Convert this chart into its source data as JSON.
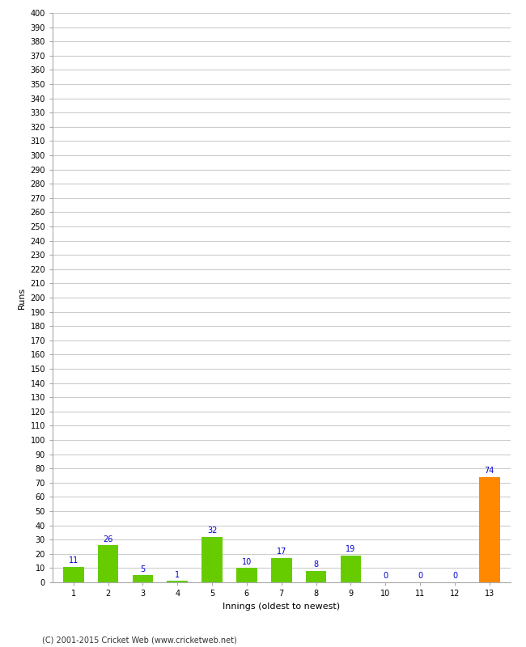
{
  "categories": [
    1,
    2,
    3,
    4,
    5,
    6,
    7,
    8,
    9,
    10,
    11,
    12,
    13
  ],
  "values": [
    11,
    26,
    5,
    1,
    32,
    10,
    17,
    8,
    19,
    0,
    0,
    0,
    74
  ],
  "bar_colors": [
    "#66cc00",
    "#66cc00",
    "#66cc00",
    "#66cc00",
    "#66cc00",
    "#66cc00",
    "#66cc00",
    "#66cc00",
    "#66cc00",
    "#66cc00",
    "#66cc00",
    "#66cc00",
    "#ff8800"
  ],
  "xlabel": "Innings (oldest to newest)",
  "ylabel": "Runs",
  "ylim": [
    0,
    400
  ],
  "ytick_step": 10,
  "label_color": "#0000cc",
  "label_fontsize": 7,
  "axis_fontsize": 8,
  "tick_fontsize": 7,
  "background_color": "#ffffff",
  "grid_color": "#cccccc",
  "footer": "(C) 2001-2015 Cricket Web (www.cricketweb.net)"
}
